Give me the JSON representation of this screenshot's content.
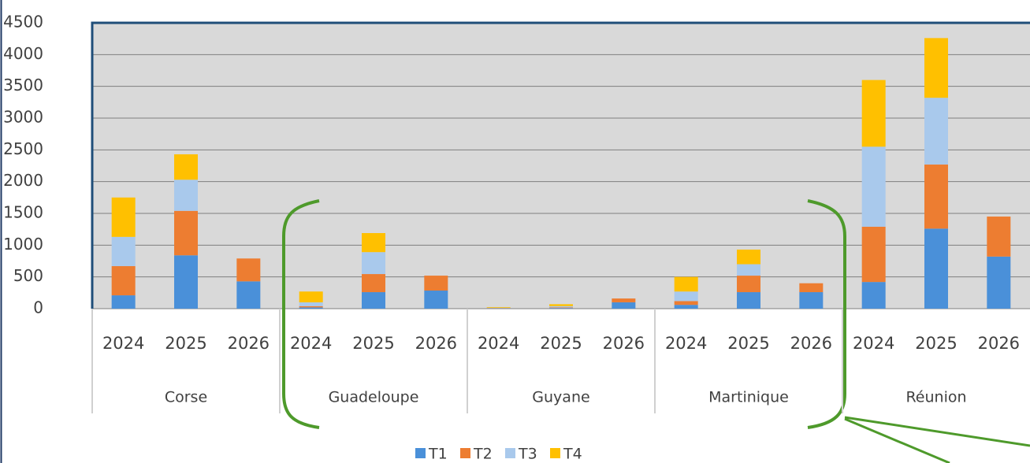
{
  "chart_data": {
    "type": "stacked-bar",
    "groups": [
      "Corse",
      "Guadeloupe",
      "Guyane",
      "Martinique",
      "Réunion"
    ],
    "categories": [
      "2024",
      "2025",
      "2026",
      "2024",
      "2025",
      "2026",
      "2024",
      "2025",
      "2026",
      "2024",
      "2025",
      "2026",
      "2024",
      "2025",
      "2026"
    ],
    "series": [
      {
        "name": "T1",
        "color": "#4a90d9",
        "values": [
          210,
          840,
          430,
          20,
          260,
          285,
          5,
          10,
          100,
          60,
          260,
          260,
          420,
          1260,
          820
        ]
      },
      {
        "name": "T2",
        "color": "#ed7d31",
        "values": [
          460,
          700,
          360,
          20,
          285,
          235,
          5,
          10,
          60,
          60,
          260,
          140,
          870,
          1010,
          630
        ]
      },
      {
        "name": "T3",
        "color": "#a9c9ec",
        "values": [
          460,
          490,
          0,
          60,
          345,
          0,
          5,
          20,
          0,
          150,
          180,
          0,
          1260,
          1050,
          0
        ]
      },
      {
        "name": "T4",
        "color": "#ffc000",
        "values": [
          620,
          400,
          0,
          170,
          300,
          0,
          10,
          30,
          0,
          230,
          230,
          0,
          1050,
          940,
          0
        ]
      }
    ],
    "ylim": [
      0,
      4500
    ],
    "yticks": [
      0,
      500,
      1000,
      1500,
      2000,
      2500,
      3000,
      3500,
      4000,
      4500
    ],
    "grid": true
  }
}
